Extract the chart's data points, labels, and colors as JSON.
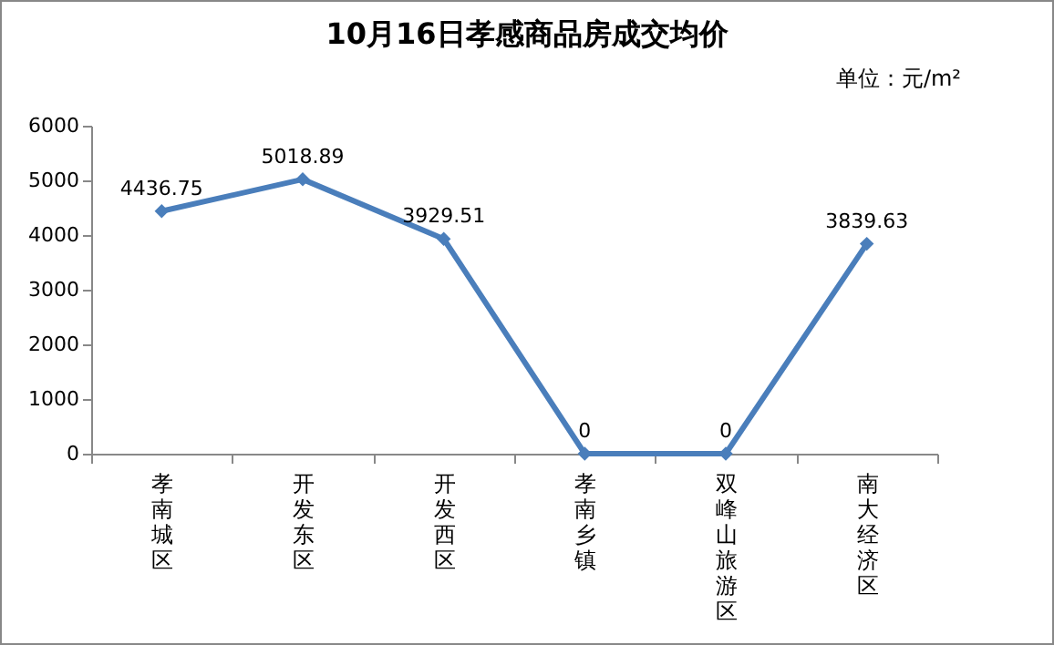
{
  "chart_data": {
    "type": "line",
    "title": "10月16日孝感商品房成交均价",
    "annotations": [
      "单位：元/m²"
    ],
    "categories": [
      "孝南城区",
      "开发东区",
      "开发西区",
      "孝南乡镇",
      "双峰山旅游区",
      "南大经济区"
    ],
    "series": [
      {
        "color": "#4a7ebb",
        "values": [
          4436.75,
          5018.89,
          3929.51,
          0,
          0,
          3839.63
        ]
      }
    ],
    "ylim": [
      0,
      6000
    ],
    "yticks": [
      0,
      1000,
      2000,
      3000,
      4000,
      5000,
      6000
    ],
    "grid": false,
    "legend": false,
    "marker": "diamond",
    "line_style": "solid",
    "data_labels": true
  }
}
